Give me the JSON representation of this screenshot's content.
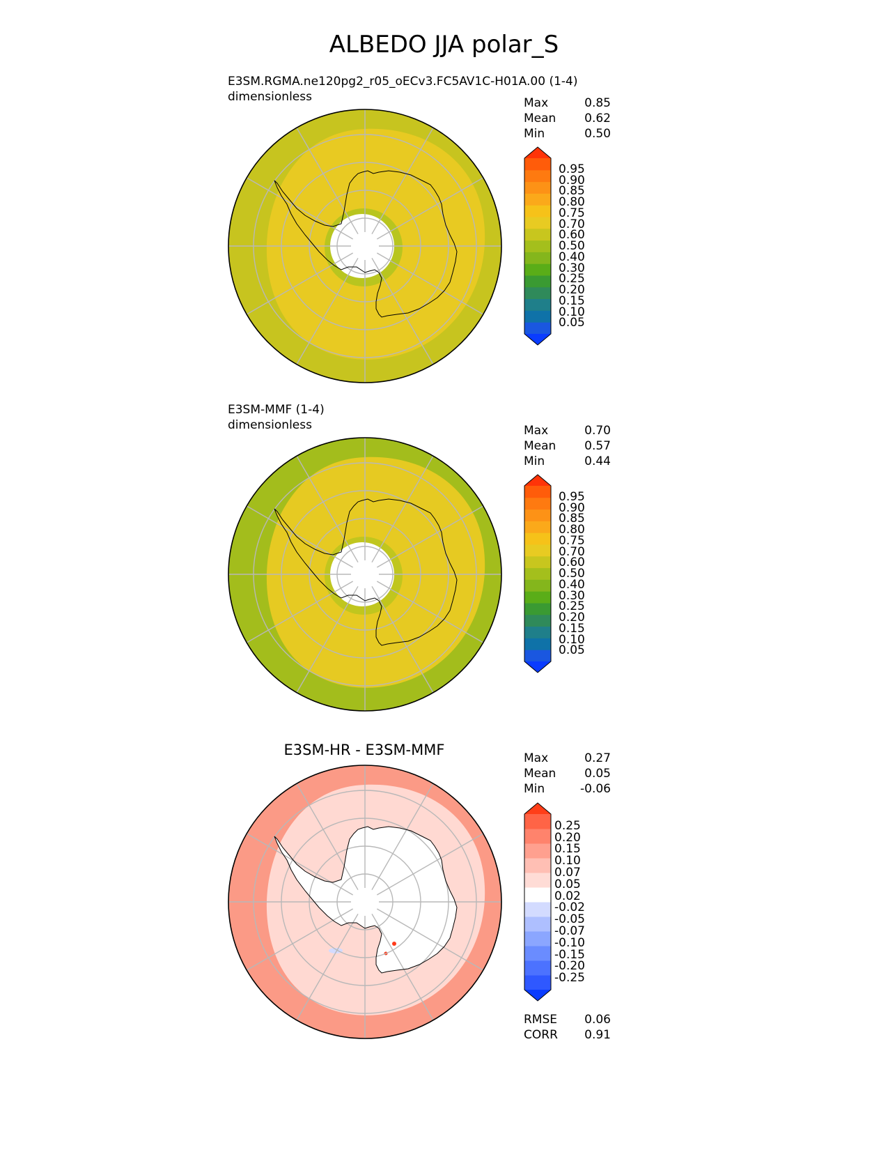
{
  "title": "ALBEDO JJA polar_S",
  "colors": {
    "ref_scale": [
      "#0a3cff",
      "#1a57e0",
      "#0f72a8",
      "#1f7f8a",
      "#2f8a5a",
      "#3a9a32",
      "#5aad18",
      "#84b61c",
      "#a4bf1c",
      "#c8c61e",
      "#e8cb22",
      "#f6c219",
      "#fba91a",
      "#fd9216",
      "#fe7a10",
      "#ff5c0a",
      "#ff3408"
    ],
    "diff_scale": [
      "#0a3cff",
      "#2f58ff",
      "#4c72ff",
      "#6a8cff",
      "#8ba6ff",
      "#aebfff",
      "#d3dbff",
      "#ffffff",
      "#ffdcd6",
      "#ffbfb4",
      "#ffa08f",
      "#ff836c",
      "#ff6446",
      "#ff3e18"
    ],
    "ocean_test": "#c7c41f",
    "land_test": "#e8ca22",
    "ocean_ref": "#a3bd1c",
    "land_ref": "#e6ca22",
    "diff_ocean": "#fb9a86",
    "diff_mid": "#ffd9d2",
    "diff_land": "#ffffff",
    "coast": "#000000",
    "grid": "#b8b8b8"
  },
  "panels": [
    {
      "title_line1": "E3SM.RGMA.ne120pg2_r05_oECv3.FC5AV1C-H01A.00 (1-4)",
      "title_line2": "dimensionless",
      "stats": {
        "max_label": "Max",
        "max": "0.85",
        "mean_label": "Mean",
        "mean": "0.62",
        "min_label": "Min",
        "min": "0.50"
      }
    },
    {
      "title_line1": "E3SM-MMF (1-4)",
      "title_line2": "dimensionless",
      "stats": {
        "max_label": "Max",
        "max": "0.70",
        "mean_label": "Mean",
        "mean": "0.57",
        "min_label": "Min",
        "min": "0.44"
      }
    },
    {
      "title": "E3SM-HR - E3SM-MMF",
      "stats": {
        "max_label": "Max",
        "max": "0.27",
        "mean_label": "Mean",
        "mean": "0.05",
        "min_label": "Min",
        "min": "-0.06"
      },
      "metrics": {
        "rmse_label": "RMSE",
        "rmse": "0.06",
        "corr_label": "CORR",
        "corr": "0.91"
      }
    }
  ],
  "chart_data": [
    {
      "type": "heatmap",
      "projection": "south-polar-stereographic",
      "title": "E3SM.RGMA.ne120pg2_r05_oECv3.FC5AV1C-H01A.00 (1-4)",
      "units": "dimensionless",
      "colorbar_levels": [
        "0.05",
        "0.10",
        "0.15",
        "0.20",
        "0.25",
        "0.30",
        "0.40",
        "0.50",
        "0.60",
        "0.70",
        "0.75",
        "0.80",
        "0.85",
        "0.90",
        "0.95"
      ],
      "field_summary": {
        "land": 0.65,
        "inner_ocean": 0.62,
        "outer_ocean": 0.55,
        "polar_gap": "no data"
      },
      "max": 0.85,
      "mean": 0.62,
      "min": 0.5
    },
    {
      "type": "heatmap",
      "projection": "south-polar-stereographic",
      "title": "E3SM-MMF (1-4)",
      "units": "dimensionless",
      "colorbar_levels": [
        "0.05",
        "0.10",
        "0.15",
        "0.20",
        "0.25",
        "0.30",
        "0.40",
        "0.50",
        "0.60",
        "0.70",
        "0.75",
        "0.80",
        "0.85",
        "0.90",
        "0.95"
      ],
      "field_summary": {
        "land": 0.65,
        "inner_ocean": 0.62,
        "outer_ocean": 0.5,
        "polar_gap": "no data"
      },
      "max": 0.7,
      "mean": 0.57,
      "min": 0.44
    },
    {
      "type": "heatmap",
      "projection": "south-polar-stereographic",
      "title": "E3SM-HR - E3SM-MMF",
      "colorbar_levels": [
        "-0.25",
        "-0.20",
        "-0.15",
        "-0.10",
        "-0.07",
        "-0.05",
        "-0.02",
        "0.02",
        "0.05",
        "0.07",
        "0.10",
        "0.15",
        "0.20",
        "0.25"
      ],
      "field_summary": {
        "land": 0.0,
        "inner_ocean": 0.04,
        "outer_ocean": 0.12
      },
      "max": 0.27,
      "mean": 0.05,
      "min": -0.06,
      "rmse": 0.06,
      "corr": 0.91
    }
  ]
}
